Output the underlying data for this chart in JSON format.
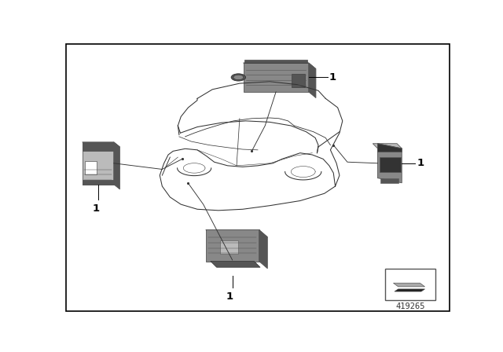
{
  "background_color": "#ffffff",
  "border_color": "#000000",
  "part_number": "419265",
  "car_color": "#333333",
  "sensor_mid": "#888888",
  "sensor_light": "#bbbbbb",
  "sensor_dark": "#555555",
  "sensor_vdark": "#333333",
  "line_color": "#333333"
}
